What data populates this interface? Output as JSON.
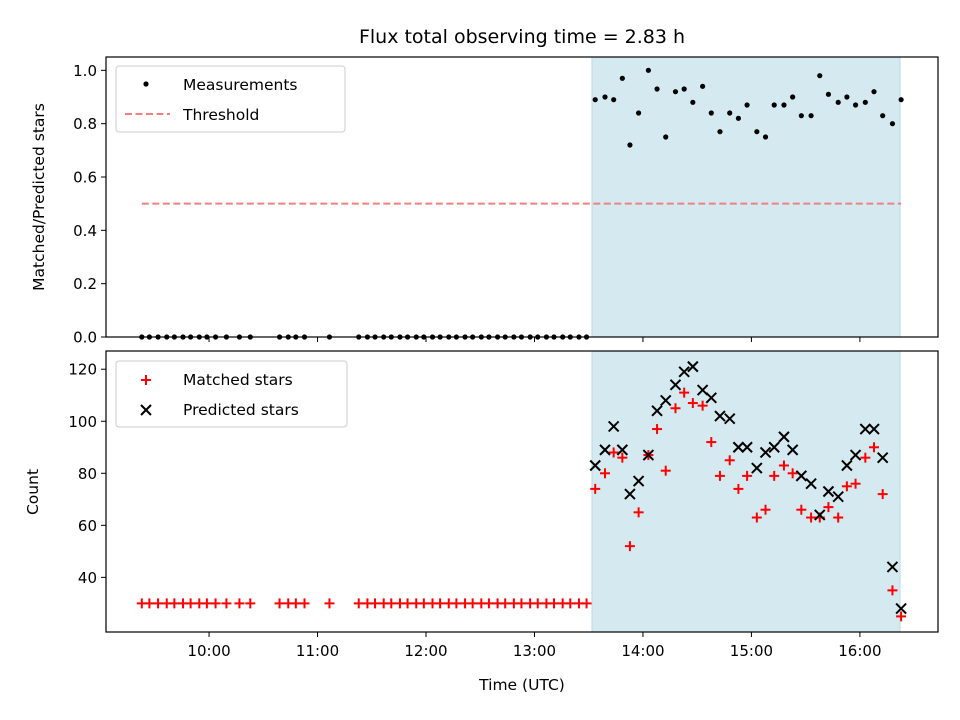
{
  "chart_data": [
    {
      "type": "scatter",
      "title": "Flux total observing time = 2.83 h",
      "xlabel": "",
      "ylabel": "Matched/Predicted stars",
      "xlim": [
        9.05,
        16.72
      ],
      "ylim": [
        0.0,
        1.05
      ],
      "yticks": [
        0.0,
        0.2,
        0.4,
        0.6,
        0.8,
        1.0
      ],
      "ytick_labels": [
        "0.0",
        "0.2",
        "0.4",
        "0.6",
        "0.8",
        "1.0"
      ],
      "shaded_region": {
        "x_start": 13.53,
        "x_end": 16.37,
        "color": "#d4eaf0"
      },
      "legend": {
        "location": "top-left",
        "entries": [
          "Measurements",
          "Threshold"
        ]
      },
      "series": [
        {
          "name": "Measurements",
          "marker": "dot",
          "color": "#000000",
          "x": [
            9.38,
            9.45,
            9.53,
            9.61,
            9.68,
            9.76,
            9.83,
            9.91,
            9.98,
            10.06,
            10.16,
            10.28,
            10.38,
            10.65,
            10.73,
            10.8,
            10.88,
            11.11,
            11.38,
            11.46,
            11.53,
            11.61,
            11.68,
            11.76,
            11.83,
            11.91,
            11.98,
            12.06,
            12.13,
            12.21,
            12.28,
            12.36,
            12.43,
            12.51,
            12.58,
            12.66,
            12.73,
            12.81,
            12.88,
            12.96,
            13.03,
            13.11,
            13.18,
            13.26,
            13.33,
            13.41,
            13.48,
            13.56,
            13.65,
            13.73,
            13.81,
            13.88,
            13.96,
            14.05,
            14.13,
            14.21,
            14.3,
            14.38,
            14.46,
            14.55,
            14.63,
            14.71,
            14.8,
            14.88,
            14.96,
            15.05,
            15.13,
            15.21,
            15.3,
            15.38,
            15.46,
            15.55,
            15.63,
            15.71,
            15.8,
            15.88,
            15.96,
            16.05,
            16.13,
            16.21,
            16.3,
            16.38
          ],
          "y": [
            0,
            0,
            0,
            0,
            0,
            0,
            0,
            0,
            0,
            0,
            0,
            0,
            0,
            0,
            0,
            0,
            0,
            0,
            0,
            0,
            0,
            0,
            0,
            0,
            0,
            0,
            0,
            0,
            0,
            0,
            0,
            0,
            0,
            0,
            0,
            0,
            0,
            0,
            0,
            0,
            0,
            0,
            0,
            0,
            0,
            0,
            0,
            0.89,
            0.9,
            0.89,
            0.97,
            0.72,
            0.84,
            1.0,
            0.93,
            0.75,
            0.92,
            0.93,
            0.88,
            0.94,
            0.84,
            0.77,
            0.84,
            0.82,
            0.87,
            0.77,
            0.75,
            0.87,
            0.87,
            0.9,
            0.83,
            0.83,
            0.98,
            0.91,
            0.88,
            0.9,
            0.87,
            0.88,
            0.92,
            0.83,
            0.8,
            0.89
          ]
        },
        {
          "name": "Threshold",
          "marker": "dashed-line",
          "color": "#f08080",
          "x": [
            9.38,
            16.38
          ],
          "y": [
            0.5,
            0.5
          ]
        }
      ]
    },
    {
      "type": "scatter",
      "title": "",
      "xlabel": "Time (UTC)",
      "ylabel": "Count",
      "xlim": [
        9.05,
        16.72
      ],
      "ylim": [
        19,
        127
      ],
      "yticks": [
        40,
        60,
        80,
        100,
        120
      ],
      "ytick_labels": [
        "40",
        "60",
        "80",
        "100",
        "120"
      ],
      "xticks": [
        10,
        11,
        12,
        13,
        14,
        15,
        16
      ],
      "xtick_labels": [
        "10:00",
        "11:00",
        "12:00",
        "13:00",
        "14:00",
        "15:00",
        "16:00"
      ],
      "shaded_region": {
        "x_start": 13.53,
        "x_end": 16.37,
        "color": "#d4eaf0"
      },
      "legend": {
        "location": "top-left",
        "entries": [
          "Matched stars",
          "Predicted stars"
        ]
      },
      "series": [
        {
          "name": "Matched stars",
          "marker": "plus",
          "color": "#ff0000",
          "x": [
            9.38,
            9.45,
            9.53,
            9.61,
            9.68,
            9.76,
            9.83,
            9.91,
            9.98,
            10.06,
            10.16,
            10.28,
            10.38,
            10.65,
            10.73,
            10.8,
            10.88,
            11.11,
            11.38,
            11.46,
            11.53,
            11.61,
            11.68,
            11.76,
            11.83,
            11.91,
            11.98,
            12.06,
            12.13,
            12.21,
            12.28,
            12.36,
            12.43,
            12.51,
            12.58,
            12.66,
            12.73,
            12.81,
            12.88,
            12.96,
            13.03,
            13.11,
            13.18,
            13.26,
            13.33,
            13.41,
            13.48,
            13.56,
            13.65,
            13.73,
            13.81,
            13.88,
            13.96,
            14.05,
            14.13,
            14.21,
            14.3,
            14.38,
            14.46,
            14.55,
            14.63,
            14.71,
            14.8,
            14.88,
            14.96,
            15.05,
            15.13,
            15.21,
            15.3,
            15.38,
            15.46,
            15.55,
            15.63,
            15.71,
            15.8,
            15.88,
            15.96,
            16.05,
            16.13,
            16.21,
            16.3,
            16.38
          ],
          "y": [
            30,
            30,
            30,
            30,
            30,
            30,
            30,
            30,
            30,
            30,
            30,
            30,
            30,
            30,
            30,
            30,
            30,
            30,
            30,
            30,
            30,
            30,
            30,
            30,
            30,
            30,
            30,
            30,
            30,
            30,
            30,
            30,
            30,
            30,
            30,
            30,
            30,
            30,
            30,
            30,
            30,
            30,
            30,
            30,
            30,
            30,
            30,
            74,
            80,
            88,
            86,
            52,
            65,
            87,
            97,
            81,
            105,
            111,
            107,
            106,
            92,
            79,
            85,
            74,
            79,
            63,
            66,
            79,
            83,
            80,
            66,
            63,
            63,
            67,
            63,
            75,
            76,
            86,
            90,
            72,
            35,
            25
          ]
        },
        {
          "name": "Predicted stars",
          "marker": "x",
          "color": "#000000",
          "x": [
            13.56,
            13.65,
            13.73,
            13.81,
            13.88,
            13.96,
            14.05,
            14.13,
            14.21,
            14.3,
            14.38,
            14.46,
            14.55,
            14.63,
            14.71,
            14.8,
            14.88,
            14.96,
            15.05,
            15.13,
            15.21,
            15.3,
            15.38,
            15.46,
            15.55,
            15.63,
            15.71,
            15.8,
            15.88,
            15.96,
            16.05,
            16.13,
            16.21,
            16.3,
            16.38
          ],
          "y": [
            83,
            89,
            98,
            89,
            72,
            77,
            87,
            104,
            108,
            114,
            119,
            121,
            112,
            109,
            102,
            101,
            90,
            90,
            82,
            88,
            90,
            94,
            89,
            79,
            76,
            64,
            73,
            71,
            83,
            87,
            97,
            97,
            86,
            44,
            28
          ]
        }
      ]
    }
  ]
}
